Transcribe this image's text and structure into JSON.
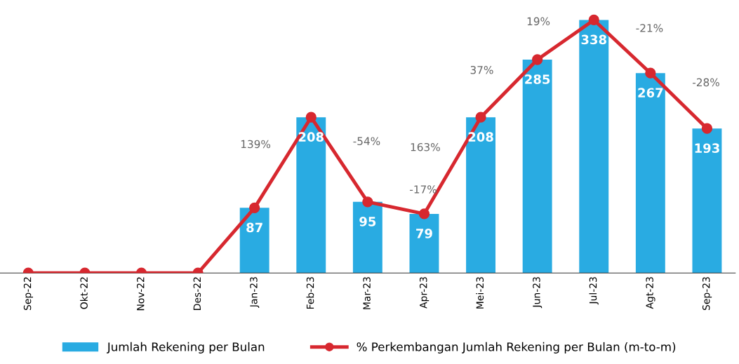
{
  "chart_data": {
    "type": "bar",
    "categories": [
      "Sep-22",
      "Okt-22",
      "Nov-22",
      "Des-22",
      "Jan-23",
      "Feb-23",
      "Mar-23",
      "Apr-23",
      "Mei-23",
      "Jun-23",
      "Jul-23",
      "Agt-23",
      "Sep-23"
    ],
    "series": [
      {
        "name": "Jumlah Rekening per Bulan",
        "color": "#29abe2",
        "values": [
          0,
          0,
          0,
          0,
          87,
          208,
          95,
          79,
          208,
          285,
          338,
          267,
          193
        ],
        "value_labels": [
          null,
          null,
          null,
          null,
          "87",
          "208",
          "95",
          "79",
          "208",
          "285",
          "338",
          "267",
          "193"
        ]
      },
      {
        "name": "% Perkembangan Jumlah Rekening per Bulan (m-to-m)",
        "type": "line",
        "color": "#d7282f",
        "marker": "circle",
        "values": [
          0,
          0,
          0,
          0,
          87,
          208,
          95,
          79,
          208,
          285,
          338,
          267,
          193
        ]
      }
    ],
    "annotations": [
      "139%",
      "-54%",
      "-17%",
      "163%",
      "37%",
      "19%",
      "-21%",
      "-28%"
    ],
    "tick_labels": "x",
    "grid": false,
    "legend": "bottom"
  }
}
